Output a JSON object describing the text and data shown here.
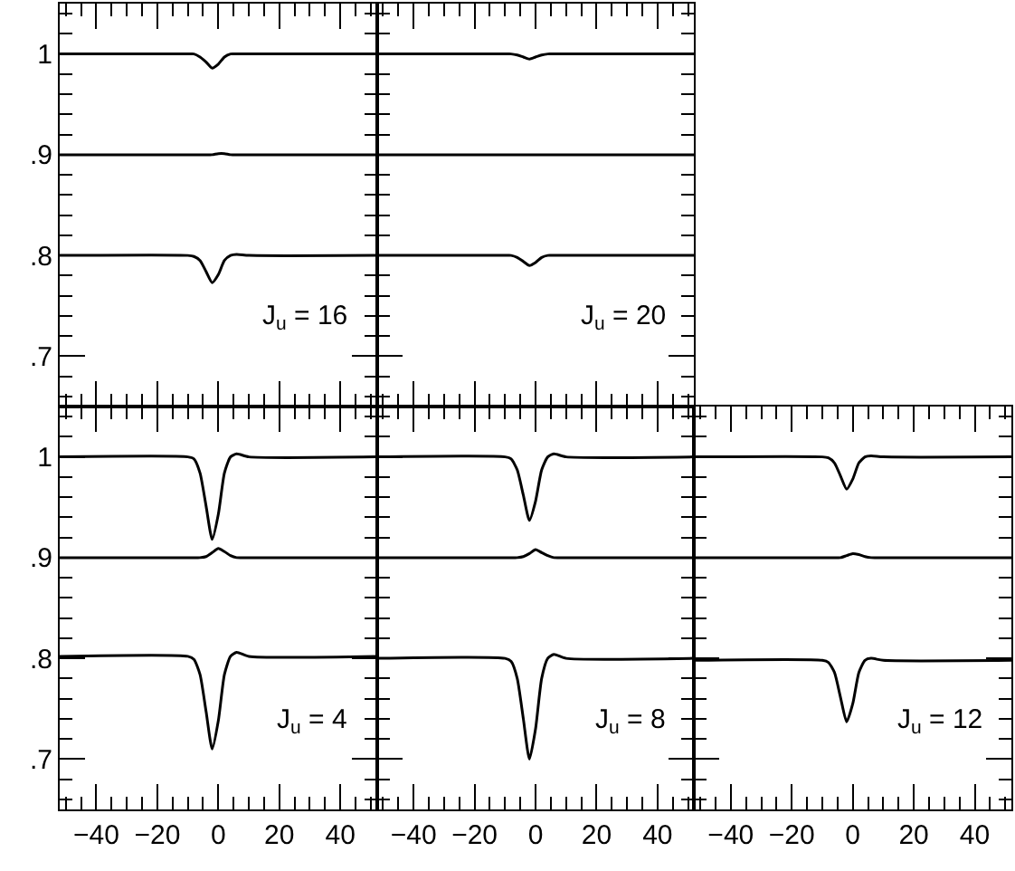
{
  "chart_data": [
    {
      "type": "line",
      "x": [
        -52,
        -10,
        -8,
        -6,
        -4,
        -2,
        0,
        2,
        4,
        6,
        10,
        52
      ],
      "xlim": [
        -52,
        52
      ],
      "xticks": [
        -40,
        -20,
        0,
        20,
        40
      ],
      "ylim": [
        0.65,
        1.05
      ],
      "yticks": [
        {
          "value": 0.7,
          "label": ".7"
        },
        {
          "value": 0.8,
          "label": ".8"
        },
        {
          "value": 0.9,
          "label": ".9"
        },
        {
          "value": 1,
          "label": "1"
        }
      ],
      "tick_labels": "y",
      "grid": false,
      "marker": "none",
      "line_style": "solid",
      "annotations": [
        "J$_{u}$ = 16"
      ],
      "series": [
        {
          "color": "#000000",
          "values": [
            1,
            1,
            1,
            0.997,
            0.992,
            0.986,
            0.99,
            0.997,
            1,
            1,
            1,
            1
          ]
        },
        {
          "color": "#000000",
          "values": [
            0.9,
            0.9,
            0.9,
            0.9,
            0.9,
            0.9,
            0.901,
            0.901,
            0.9,
            0.9,
            0.9,
            0.9
          ]
        },
        {
          "color": "#000000",
          "values": [
            0.8,
            0.8,
            0.799,
            0.795,
            0.784,
            0.773,
            0.781,
            0.795,
            0.8,
            0.801,
            0.8,
            0.8
          ]
        }
      ]
    },
    {
      "type": "line",
      "x": [
        -52,
        -10,
        -8,
        -6,
        -4,
        -2,
        0,
        2,
        4,
        6,
        10,
        52
      ],
      "xlim": [
        -52,
        52
      ],
      "xticks": [
        -40,
        -20,
        0,
        20,
        40
      ],
      "ylim": [
        0.65,
        1.05
      ],
      "yticks": [
        0.7,
        0.8,
        0.9,
        1
      ],
      "tick_labels": false,
      "grid": false,
      "marker": "none",
      "line_style": "solid",
      "annotations": [
        "J$_{u}$ = 20"
      ],
      "series": [
        {
          "color": "#000000",
          "values": [
            1,
            1,
            1,
            0.999,
            0.997,
            0.995,
            0.997,
            0.999,
            1,
            1,
            1,
            1
          ]
        },
        {
          "color": "#000000",
          "values": [
            0.9,
            0.9,
            0.9,
            0.9,
            0.9,
            0.9,
            0.9,
            0.9,
            0.9,
            0.9,
            0.9,
            0.9
          ]
        },
        {
          "color": "#000000",
          "values": [
            0.8,
            0.8,
            0.8,
            0.798,
            0.794,
            0.79,
            0.793,
            0.798,
            0.8,
            0.8,
            0.8,
            0.8
          ]
        }
      ]
    },
    {
      "type": "line",
      "x": [
        -52,
        -10,
        -8,
        -6,
        -4,
        -2,
        0,
        2,
        4,
        6,
        10,
        52
      ],
      "xlim": [
        -52,
        52
      ],
      "xticks": [
        -40,
        -20,
        0,
        20,
        40
      ],
      "ylim": [
        0.65,
        1.05
      ],
      "yticks": [
        {
          "value": 0.7,
          "label": ".7"
        },
        {
          "value": 0.8,
          "label": ".8"
        },
        {
          "value": 0.9,
          "label": ".9"
        },
        {
          "value": 1,
          "label": "1"
        }
      ],
      "grid": false,
      "marker": "none",
      "line_style": "solid",
      "annotations": [
        "J$_{u}$ = 4"
      ],
      "series": [
        {
          "color": "#000000",
          "values": [
            1,
            1,
            0.998,
            0.984,
            0.951,
            0.918,
            0.943,
            0.984,
            1,
            1.003,
            1,
            1
          ]
        },
        {
          "color": "#000000",
          "values": [
            0.9,
            0.9,
            0.9,
            0.9,
            0.901,
            0.905,
            0.909,
            0.906,
            0.902,
            0.9,
            0.9,
            0.9
          ]
        },
        {
          "color": "#000000",
          "values": [
            0.802,
            0.802,
            0.799,
            0.784,
            0.747,
            0.71,
            0.738,
            0.784,
            0.802,
            0.806,
            0.802,
            0.802
          ]
        }
      ]
    },
    {
      "type": "line",
      "x": [
        -52,
        -10,
        -8,
        -6,
        -4,
        -2,
        0,
        2,
        4,
        6,
        10,
        52
      ],
      "xlim": [
        -52,
        52
      ],
      "xticks": [
        -40,
        -20,
        0,
        20,
        40
      ],
      "ylim": [
        0.65,
        1.05
      ],
      "yticks": [
        0.7,
        0.8,
        0.9,
        1
      ],
      "tick_labels": "x",
      "grid": false,
      "marker": "none",
      "line_style": "solid",
      "annotations": [
        "J$_{u}$ = 8"
      ],
      "series": [
        {
          "color": "#000000",
          "values": [
            1,
            1,
            0.998,
            0.987,
            0.962,
            0.937,
            0.956,
            0.987,
            1,
            1.003,
            1,
            1
          ]
        },
        {
          "color": "#000000",
          "values": [
            0.9,
            0.9,
            0.9,
            0.9,
            0.901,
            0.904,
            0.908,
            0.905,
            0.902,
            0.9,
            0.9,
            0.9
          ]
        },
        {
          "color": "#000000",
          "values": [
            0.8,
            0.8,
            0.797,
            0.78,
            0.74,
            0.7,
            0.73,
            0.78,
            0.8,
            0.804,
            0.8,
            0.8
          ]
        }
      ]
    },
    {
      "type": "line",
      "x": [
        -52,
        -10,
        -8,
        -6,
        -4,
        -2,
        0,
        2,
        4,
        6,
        10,
        52
      ],
      "xlim": [
        -52,
        52
      ],
      "xticks": [
        -40,
        -20,
        0,
        20,
        40
      ],
      "ylim": [
        0.65,
        1.05
      ],
      "yticks": [
        0.7,
        0.8,
        0.9,
        1
      ],
      "tick_labels": "x",
      "grid": false,
      "marker": "none",
      "line_style": "solid",
      "annotations": [
        "J$_{u}$ = 12"
      ],
      "series": [
        {
          "color": "#000000",
          "values": [
            1,
            1,
            0.999,
            0.994,
            0.981,
            0.968,
            0.978,
            0.994,
            1,
            1.001,
            1,
            1
          ]
        },
        {
          "color": "#000000",
          "values": [
            0.9,
            0.9,
            0.9,
            0.9,
            0.9,
            0.902,
            0.904,
            0.903,
            0.901,
            0.9,
            0.9,
            0.9
          ]
        },
        {
          "color": "#000000",
          "values": [
            0.798,
            0.798,
            0.796,
            0.786,
            0.761,
            0.737,
            0.755,
            0.786,
            0.798,
            0.8,
            0.798,
            0.798
          ]
        }
      ]
    }
  ]
}
